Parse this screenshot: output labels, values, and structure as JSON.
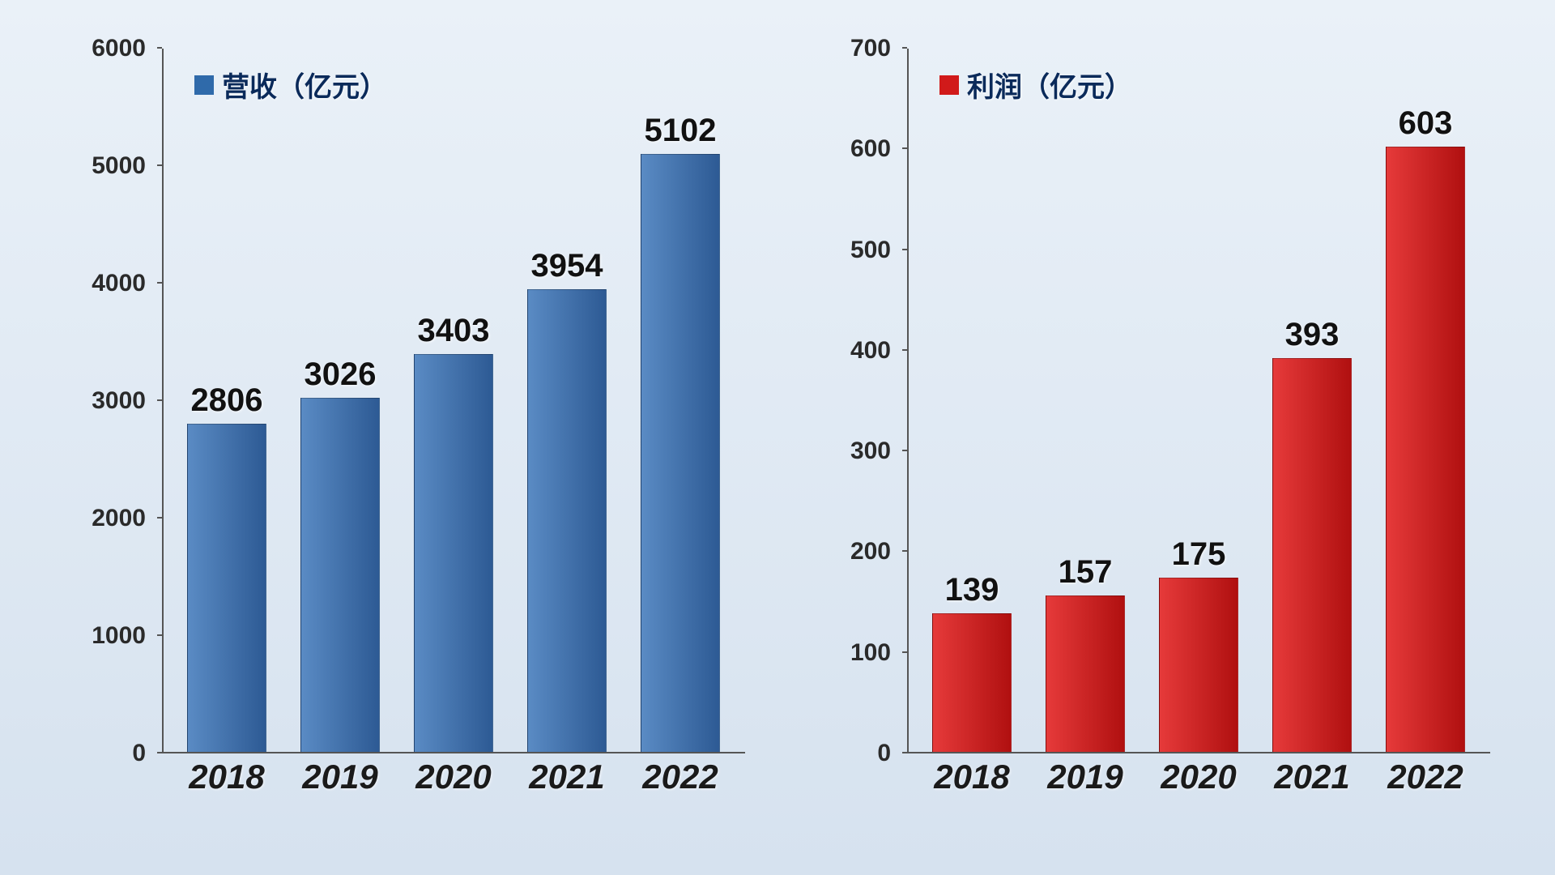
{
  "background_gradient": [
    "#eaf1f8",
    "#d6e2ef"
  ],
  "charts": [
    {
      "id": "revenue",
      "type": "bar",
      "legend_label": "营收（亿元）",
      "legend_swatch_color": "#2f6aaa",
      "bar_gradient": [
        "#5a8bc4",
        "#2d5a94"
      ],
      "categories": [
        "2018",
        "2019",
        "2020",
        "2021",
        "2022"
      ],
      "values": [
        2806,
        3026,
        3403,
        3954,
        5102
      ],
      "ylim": [
        0,
        6000
      ],
      "ytick_step": 1000,
      "value_fontsize": 40,
      "ytick_fontsize": 30,
      "xlabel_fontsize": 42,
      "legend_fontsize": 34,
      "bar_width_ratio": 0.7,
      "axis_color": "#555555",
      "label_color": "#1a1a1a"
    },
    {
      "id": "profit",
      "type": "bar",
      "legend_label": "利润（亿元）",
      "legend_swatch_color": "#d11a1a",
      "bar_gradient": [
        "#e63a3a",
        "#b01010"
      ],
      "categories": [
        "2018",
        "2019",
        "2020",
        "2021",
        "2022"
      ],
      "values": [
        139,
        157,
        175,
        393,
        603
      ],
      "ylim": [
        0,
        700
      ],
      "ytick_step": 100,
      "value_fontsize": 40,
      "ytick_fontsize": 30,
      "xlabel_fontsize": 42,
      "legend_fontsize": 34,
      "bar_width_ratio": 0.7,
      "axis_color": "#555555",
      "label_color": "#1a1a1a"
    }
  ]
}
